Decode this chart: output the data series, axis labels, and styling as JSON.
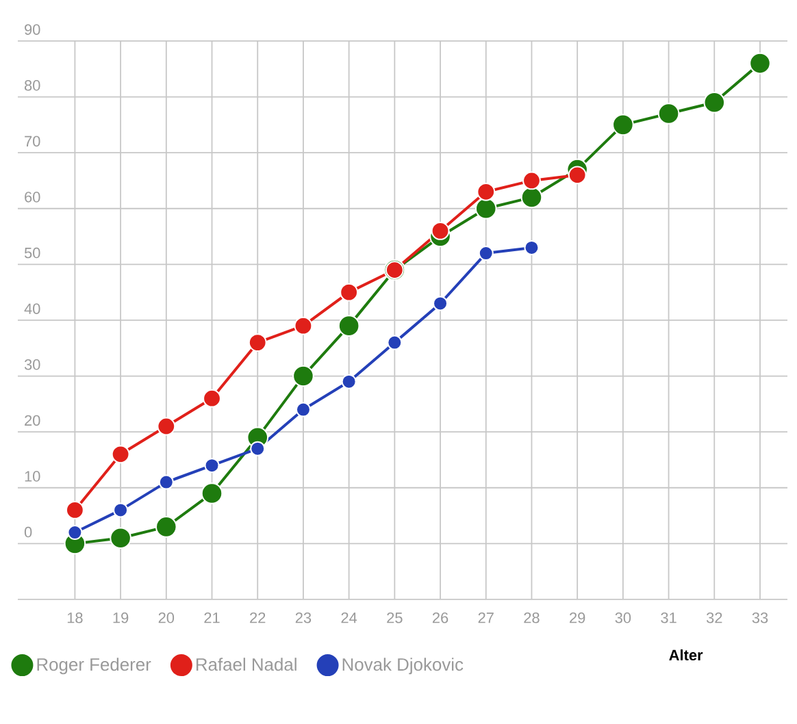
{
  "chart_data": {
    "type": "line",
    "xlabel": "Alter",
    "x": [
      18,
      19,
      20,
      21,
      22,
      23,
      24,
      25,
      26,
      27,
      28,
      29,
      30,
      31,
      32,
      33
    ],
    "xlim": [
      16.75,
      33.6
    ],
    "xticks": [
      18,
      19,
      20,
      21,
      22,
      23,
      24,
      25,
      26,
      27,
      28,
      29,
      30,
      31,
      32,
      33
    ],
    "ylim": [
      -10,
      90
    ],
    "yticks": [
      {
        "value": -10,
        "label": null
      },
      0,
      10,
      20,
      30,
      40,
      50,
      60,
      70,
      80,
      90
    ],
    "grid": true,
    "legend": "bottom left",
    "marker": "circle",
    "line_style": "solid",
    "series": [
      {
        "name": "Roger Federer",
        "color": "#1e7b0e",
        "values": [
          0,
          1,
          3,
          9,
          19,
          30,
          39,
          49,
          55,
          60,
          62,
          67,
          75,
          77,
          79,
          86
        ]
      },
      {
        "name": "Rafael Nadal",
        "color": "#e0201a",
        "values": [
          6,
          16,
          21,
          26,
          36,
          39,
          45,
          49,
          56,
          63,
          65,
          66,
          null,
          null,
          null,
          null
        ]
      },
      {
        "name": "Novak Djokovic",
        "color": "#2440b8",
        "values": [
          2,
          6,
          11,
          14,
          17,
          24,
          29,
          36,
          43,
          52,
          53,
          null,
          null,
          null,
          null,
          null
        ]
      }
    ]
  }
}
